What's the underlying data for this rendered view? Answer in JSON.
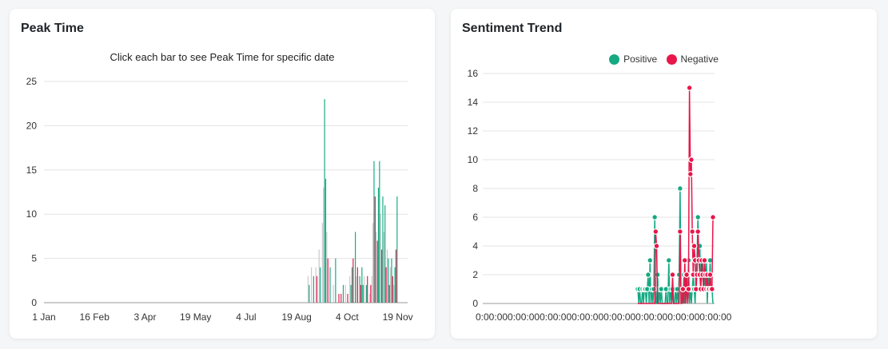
{
  "peak_card": {
    "title": "Peak Time",
    "subtitle": "Click each bar to see Peak Time for specific date"
  },
  "sentiment_card": {
    "title": "Sentiment Trend",
    "legend": [
      {
        "label": "Positive",
        "color": "#14a982"
      },
      {
        "label": "Negative",
        "color": "#e8164a"
      }
    ]
  },
  "chart_data": [
    {
      "type": "bar",
      "title": "Peak Time",
      "subtitle": "Click each bar to see Peak Time for specific date",
      "ylim": [
        0,
        25
      ],
      "y_ticks": [
        0,
        5,
        10,
        15,
        20,
        25
      ],
      "x_tick_labels": [
        "1 Jan",
        "16 Feb",
        "3 Apr",
        "19 May",
        "4 Jul",
        "19 Aug",
        "4 Oct",
        "19 Nov"
      ],
      "grid": true,
      "colors": [
        "#14a982",
        "#e8164a",
        "#c9c9c9"
      ],
      "bars": [
        {
          "day": 240,
          "value": 3,
          "color": "#c9c9c9"
        },
        {
          "day": 241,
          "value": 2,
          "color": "#14a982"
        },
        {
          "day": 243,
          "value": 4,
          "color": "#c9c9c9"
        },
        {
          "day": 245,
          "value": 3,
          "color": "#14a982"
        },
        {
          "day": 247,
          "value": 4,
          "color": "#c9c9c9"
        },
        {
          "day": 248,
          "value": 3,
          "color": "#e8164a"
        },
        {
          "day": 250,
          "value": 6,
          "color": "#c9c9c9"
        },
        {
          "day": 251,
          "value": 4,
          "color": "#14a982"
        },
        {
          "day": 253,
          "value": 9,
          "color": "#c9c9c9"
        },
        {
          "day": 254,
          "value": 13,
          "color": "#c9c9c9"
        },
        {
          "day": 255,
          "value": 23,
          "color": "#14a982"
        },
        {
          "day": 256,
          "value": 14,
          "color": "#14a982"
        },
        {
          "day": 257,
          "value": 8,
          "color": "#c9c9c9"
        },
        {
          "day": 258,
          "value": 5,
          "color": "#e8164a"
        },
        {
          "day": 260,
          "value": 4,
          "color": "#14a982"
        },
        {
          "day": 263,
          "value": 2,
          "color": "#c9c9c9"
        },
        {
          "day": 265,
          "value": 5,
          "color": "#14a982"
        },
        {
          "day": 268,
          "value": 1,
          "color": "#e8164a"
        },
        {
          "day": 270,
          "value": 1,
          "color": "#e8164a"
        },
        {
          "day": 272,
          "value": 2,
          "color": "#14a982"
        },
        {
          "day": 274,
          "value": 2,
          "color": "#c9c9c9"
        },
        {
          "day": 276,
          "value": 1,
          "color": "#e8164a"
        },
        {
          "day": 278,
          "value": 3,
          "color": "#c9c9c9"
        },
        {
          "day": 279,
          "value": 2,
          "color": "#14a982"
        },
        {
          "day": 280,
          "value": 4,
          "color": "#14a982"
        },
        {
          "day": 281,
          "value": 5,
          "color": "#e8164a"
        },
        {
          "day": 283,
          "value": 8,
          "color": "#14a982"
        },
        {
          "day": 284,
          "value": 3,
          "color": "#c9c9c9"
        },
        {
          "day": 285,
          "value": 4,
          "color": "#e8164a"
        },
        {
          "day": 287,
          "value": 3,
          "color": "#14a982"
        },
        {
          "day": 288,
          "value": 2,
          "color": "#e8164a"
        },
        {
          "day": 289,
          "value": 4,
          "color": "#14a982"
        },
        {
          "day": 290,
          "value": 2,
          "color": "#14a982"
        },
        {
          "day": 291,
          "value": 3,
          "color": "#c9c9c9"
        },
        {
          "day": 293,
          "value": 2,
          "color": "#14a982"
        },
        {
          "day": 294,
          "value": 3,
          "color": "#e8164a"
        },
        {
          "day": 296,
          "value": 1,
          "color": "#c9c9c9"
        },
        {
          "day": 297,
          "value": 2,
          "color": "#e8164a"
        },
        {
          "day": 298,
          "value": 3,
          "color": "#c9c9c9"
        },
        {
          "day": 299,
          "value": 9,
          "color": "#c9c9c9"
        },
        {
          "day": 300,
          "value": 16,
          "color": "#14a982"
        },
        {
          "day": 301,
          "value": 12,
          "color": "#e8164a"
        },
        {
          "day": 302,
          "value": 8,
          "color": "#c9c9c9"
        },
        {
          "day": 303,
          "value": 7,
          "color": "#e8164a"
        },
        {
          "day": 304,
          "value": 13,
          "color": "#14a982"
        },
        {
          "day": 305,
          "value": 16,
          "color": "#14a982"
        },
        {
          "day": 306,
          "value": 10,
          "color": "#c9c9c9"
        },
        {
          "day": 307,
          "value": 6,
          "color": "#e8164a"
        },
        {
          "day": 308,
          "value": 12,
          "color": "#14a982"
        },
        {
          "day": 309,
          "value": 8,
          "color": "#c9c9c9"
        },
        {
          "day": 310,
          "value": 11,
          "color": "#14a982"
        },
        {
          "day": 311,
          "value": 4,
          "color": "#e8164a"
        },
        {
          "day": 312,
          "value": 6,
          "color": "#c9c9c9"
        },
        {
          "day": 313,
          "value": 5,
          "color": "#14a982"
        },
        {
          "day": 314,
          "value": 2,
          "color": "#e8164a"
        },
        {
          "day": 315,
          "value": 4,
          "color": "#c9c9c9"
        },
        {
          "day": 316,
          "value": 5,
          "color": "#14a982"
        },
        {
          "day": 317,
          "value": 3,
          "color": "#e8164a"
        },
        {
          "day": 318,
          "value": 2,
          "color": "#c9c9c9"
        },
        {
          "day": 319,
          "value": 4,
          "color": "#14a982"
        },
        {
          "day": 320,
          "value": 6,
          "color": "#e8164a"
        },
        {
          "day": 321,
          "value": 12,
          "color": "#14a982"
        }
      ]
    },
    {
      "type": "line",
      "title": "Sentiment Trend",
      "ylim": [
        0,
        16
      ],
      "y_ticks": [
        0,
        2,
        4,
        6,
        8,
        10,
        12,
        14,
        16
      ],
      "x_tick_label": "0:00:00",
      "x_tick_count": 8,
      "legend": "top-center",
      "grid": true,
      "series": [
        {
          "name": "Positive",
          "color": "#14a982",
          "values": [
            1,
            0,
            1,
            0,
            0,
            1,
            0,
            1,
            1,
            0,
            1,
            2,
            0,
            3,
            0,
            1,
            0,
            1,
            6,
            0,
            0,
            2,
            0,
            1,
            0,
            1,
            0,
            0,
            0,
            0,
            1,
            0,
            0,
            3,
            0,
            1,
            0,
            1,
            0,
            0,
            1,
            0,
            1,
            0,
            2,
            8,
            0,
            1,
            0,
            2,
            0,
            2,
            1,
            0,
            3,
            0,
            1,
            0,
            1,
            2,
            1,
            0,
            2,
            3,
            6,
            3,
            4,
            1,
            2,
            3,
            1,
            2,
            1,
            3,
            0,
            2,
            1,
            3,
            1,
            1,
            0
          ]
        },
        {
          "name": "Negative",
          "color": "#e8164a",
          "values": [
            0,
            0,
            0,
            0,
            0,
            0,
            0,
            0,
            0,
            0,
            0,
            0,
            0,
            0,
            0,
            0,
            0,
            0,
            0,
            5,
            4,
            0,
            0,
            0,
            0,
            0,
            0,
            0,
            0,
            0,
            0,
            0,
            0,
            0,
            0,
            0,
            0,
            2,
            0,
            0,
            0,
            0,
            0,
            0,
            0,
            5,
            0,
            0,
            1,
            0,
            3,
            0,
            2,
            0,
            1,
            15,
            9,
            10,
            5,
            2,
            4,
            3,
            1,
            2,
            5,
            3,
            2,
            1,
            3,
            2,
            1,
            3,
            2,
            1,
            2,
            1,
            1,
            2,
            1,
            1,
            6
          ]
        }
      ]
    }
  ]
}
